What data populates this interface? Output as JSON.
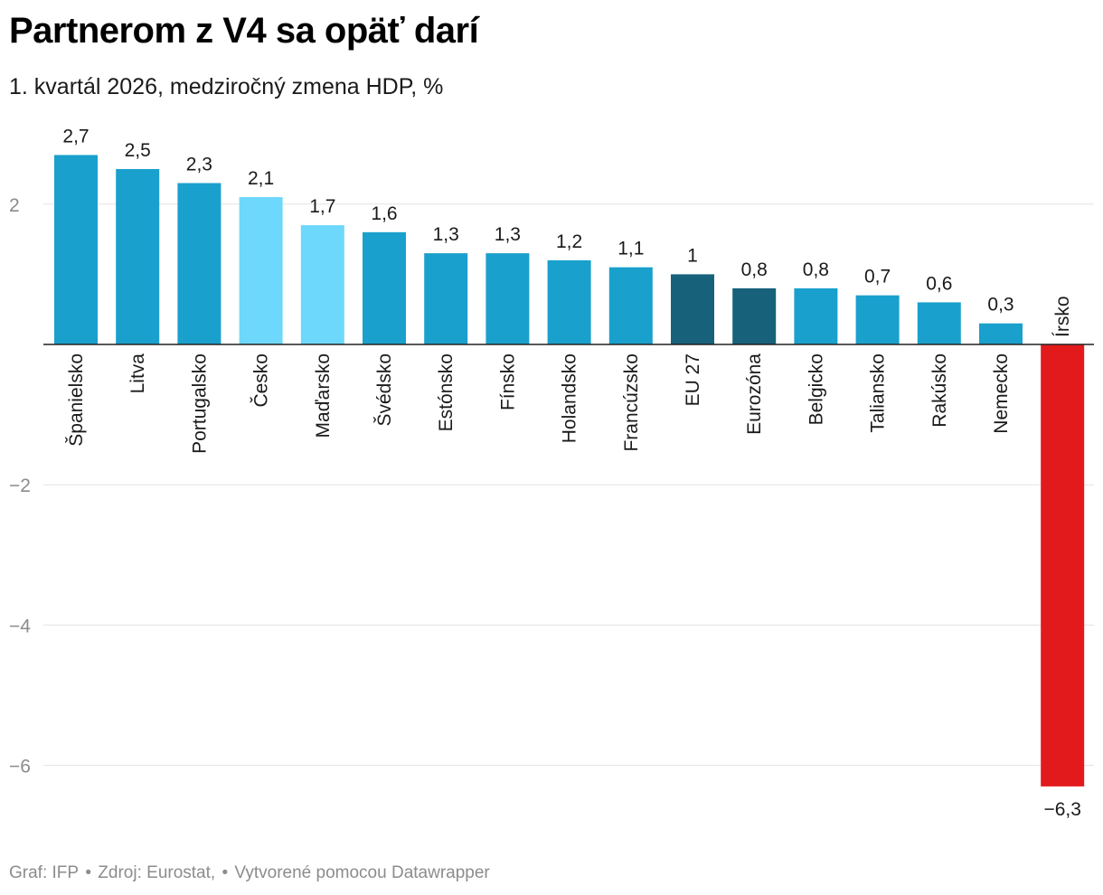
{
  "header": {
    "title": "Partnerom z V4 sa opäť darí",
    "subtitle": "1. kvartál 2026, medziročný zmena HDP, %"
  },
  "footer": {
    "graf": "Graf: IFP",
    "sep1": " • ",
    "source": "Zdroj: Eurostat,",
    "sep2": " • ",
    "made_with": "Vytvorené pomocou Datawrapper"
  },
  "chart_data": {
    "type": "bar",
    "title": "Partnerom z V4 sa opäť darí",
    "subtitle": "1. kvartál 2026, medziročný zmena HDP, %",
    "xlabel": "",
    "ylabel": "",
    "ylim": [
      -6.4,
      2.9
    ],
    "yticks": [
      2,
      -2,
      -4,
      -6
    ],
    "ytick_labels": [
      "2",
      "−2",
      "−4",
      "−6"
    ],
    "grid": true,
    "categories": [
      "Španielsko",
      "Litva",
      "Portugalsko",
      "Česko",
      "Maďarsko",
      "Švédsko",
      "Estónsko",
      "Fínsko",
      "Holandsko",
      "Francúzsko",
      "EU 27",
      "Eurozóna",
      "Belgicko",
      "Taliansko",
      "Rakúsko",
      "Nemecko",
      "Írsko"
    ],
    "values": [
      2.7,
      2.5,
      2.3,
      2.1,
      1.7,
      1.6,
      1.3,
      1.3,
      1.2,
      1.1,
      1,
      0.8,
      0.8,
      0.7,
      0.6,
      0.3,
      -6.3
    ],
    "value_labels": [
      "2,7",
      "2,5",
      "2,3",
      "2,1",
      "1,7",
      "1,6",
      "1,3",
      "1,3",
      "1,2",
      "1,1",
      "1",
      "0,8",
      "0,8",
      "0,7",
      "0,6",
      "0,3",
      "−6,3"
    ],
    "colors": [
      "#1aa0cc",
      "#1aa0cc",
      "#1aa0cc",
      "#6dd8fc",
      "#6dd8fc",
      "#1aa0cc",
      "#1aa0cc",
      "#1aa0cc",
      "#1aa0cc",
      "#1aa0cc",
      "#17617b",
      "#17617b",
      "#1aa0cc",
      "#1aa0cc",
      "#1aa0cc",
      "#1aa0cc",
      "#e31a1c"
    ]
  }
}
